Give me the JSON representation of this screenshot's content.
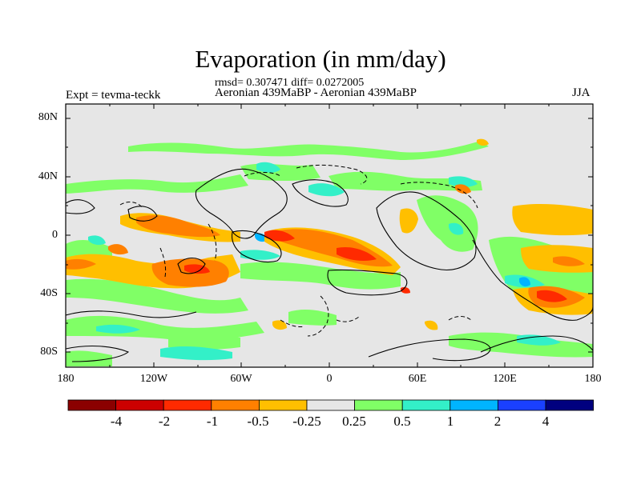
{
  "header": {
    "title": "Evaporation (in mm/day)",
    "stats": "rmsd= 0.307471 diff= 0.0272005",
    "subtitle": "Aeronian 439MaBP - Aeronian 439MaBP",
    "expt": "Expt = tevma-teckk",
    "season": "JJA"
  },
  "axes": {
    "y_ticks": [
      "80N",
      "40N",
      "0",
      "40S",
      "80S"
    ],
    "x_ticks": [
      "180",
      "120W",
      "60W",
      "0",
      "60E",
      "120E",
      "180"
    ]
  },
  "colorbar": {
    "labels": [
      "-4",
      "-2",
      "-1",
      "-0.5",
      "-0.25",
      "0.25",
      "0.5",
      "1",
      "2",
      "4"
    ],
    "colors": [
      "#8b0000",
      "#cc0000",
      "#ff2a00",
      "#ff8000",
      "#ffbf00",
      "#e6e6e6",
      "#80ff66",
      "#33f0c8",
      "#00b4ff",
      "#1a40ff",
      "#00007f"
    ]
  },
  "map_colors": {
    "background": "#e6e6e6",
    "green": "#80ff66",
    "cyan": "#33f0c8",
    "blue": "#00b4ff",
    "yellow": "#ffbf00",
    "orange": "#ff8000",
    "red": "#ff2a00"
  }
}
